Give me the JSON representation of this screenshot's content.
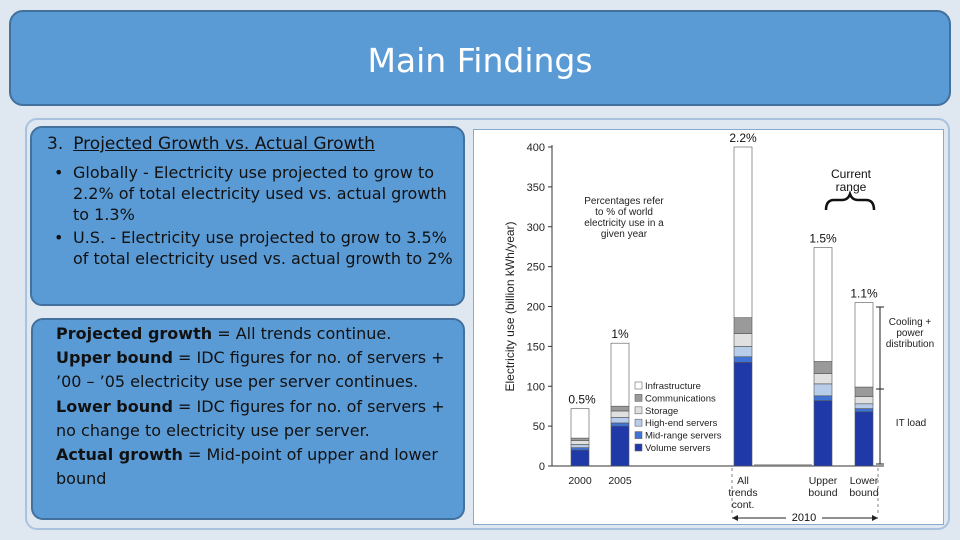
{
  "slide": {
    "title": "Main Findings",
    "section_number": "3.",
    "section_title": "Projected Growth vs. Actual Growth",
    "bullets": [
      {
        "symbol": "•",
        "text": "Globally - Electricity use projected to grow to 2.2% of total electricity used vs. actual growth to 1.3%"
      },
      {
        "symbol": "•",
        "text": "U.S. - Electricity use projected to grow to 3.5% of total electricity used vs. actual growth to 2%"
      }
    ],
    "definitions": [
      {
        "term": "Projected growth",
        "text": " = All trends continue."
      },
      {
        "term": "Upper bound",
        "text": " = IDC figures for no. of servers + ’00 – ’05 electricity use per server continues."
      },
      {
        "term": "Lower bound",
        "text": " = IDC figures for no. of servers + no change to electricity use per server."
      },
      {
        "term": "Actual growth",
        "text": " = Mid-point of upper and lower bound"
      }
    ]
  },
  "chart_data": {
    "type": "bar",
    "stacked": true,
    "ylabel": "Electricity use (billion kWh/year)",
    "ylim": [
      0,
      400
    ],
    "yticks": [
      0,
      50,
      100,
      150,
      200,
      250,
      300,
      350,
      400
    ],
    "categories": [
      "2000",
      "2005",
      "All trends cont.",
      "Upper bound",
      "Lower bound"
    ],
    "category_labels": [
      [
        "2000"
      ],
      [
        "2005"
      ],
      [
        "All",
        "trends",
        "cont."
      ],
      [
        "Upper",
        "bound"
      ],
      [
        "Lower",
        "bound"
      ]
    ],
    "group_label": "2010",
    "bar_top_labels": [
      "0.5%",
      "1%",
      "2.2%",
      "1.5%",
      "1.1%"
    ],
    "series": [
      {
        "name": "Volume servers",
        "color": "#1f3aa8",
        "values": [
          20,
          50,
          130,
          82,
          68
        ]
      },
      {
        "name": "Mid-range servers",
        "color": "#3f74d6",
        "values": [
          3,
          4,
          7,
          6,
          4
        ]
      },
      {
        "name": "High-end servers",
        "color": "#b7cdea",
        "values": [
          4,
          7,
          13,
          15,
          6
        ]
      },
      {
        "name": "Storage",
        "color": "#e0e0e0",
        "values": [
          5,
          8,
          16,
          13,
          9
        ]
      },
      {
        "name": "Communications",
        "color": "#9a9a9a",
        "values": [
          3,
          6,
          20,
          15,
          12
        ]
      },
      {
        "name": "Infrastructure",
        "color": "#ffffff",
        "values": [
          37,
          79,
          214,
          143,
          106
        ]
      }
    ],
    "legend_position": "inside",
    "annotations": {
      "percent_note": "Percentages refer to % of world electricity use in a given year",
      "current_range": "Current range",
      "cooling": "Cooling + power distribution",
      "it_load": "IT load"
    }
  }
}
